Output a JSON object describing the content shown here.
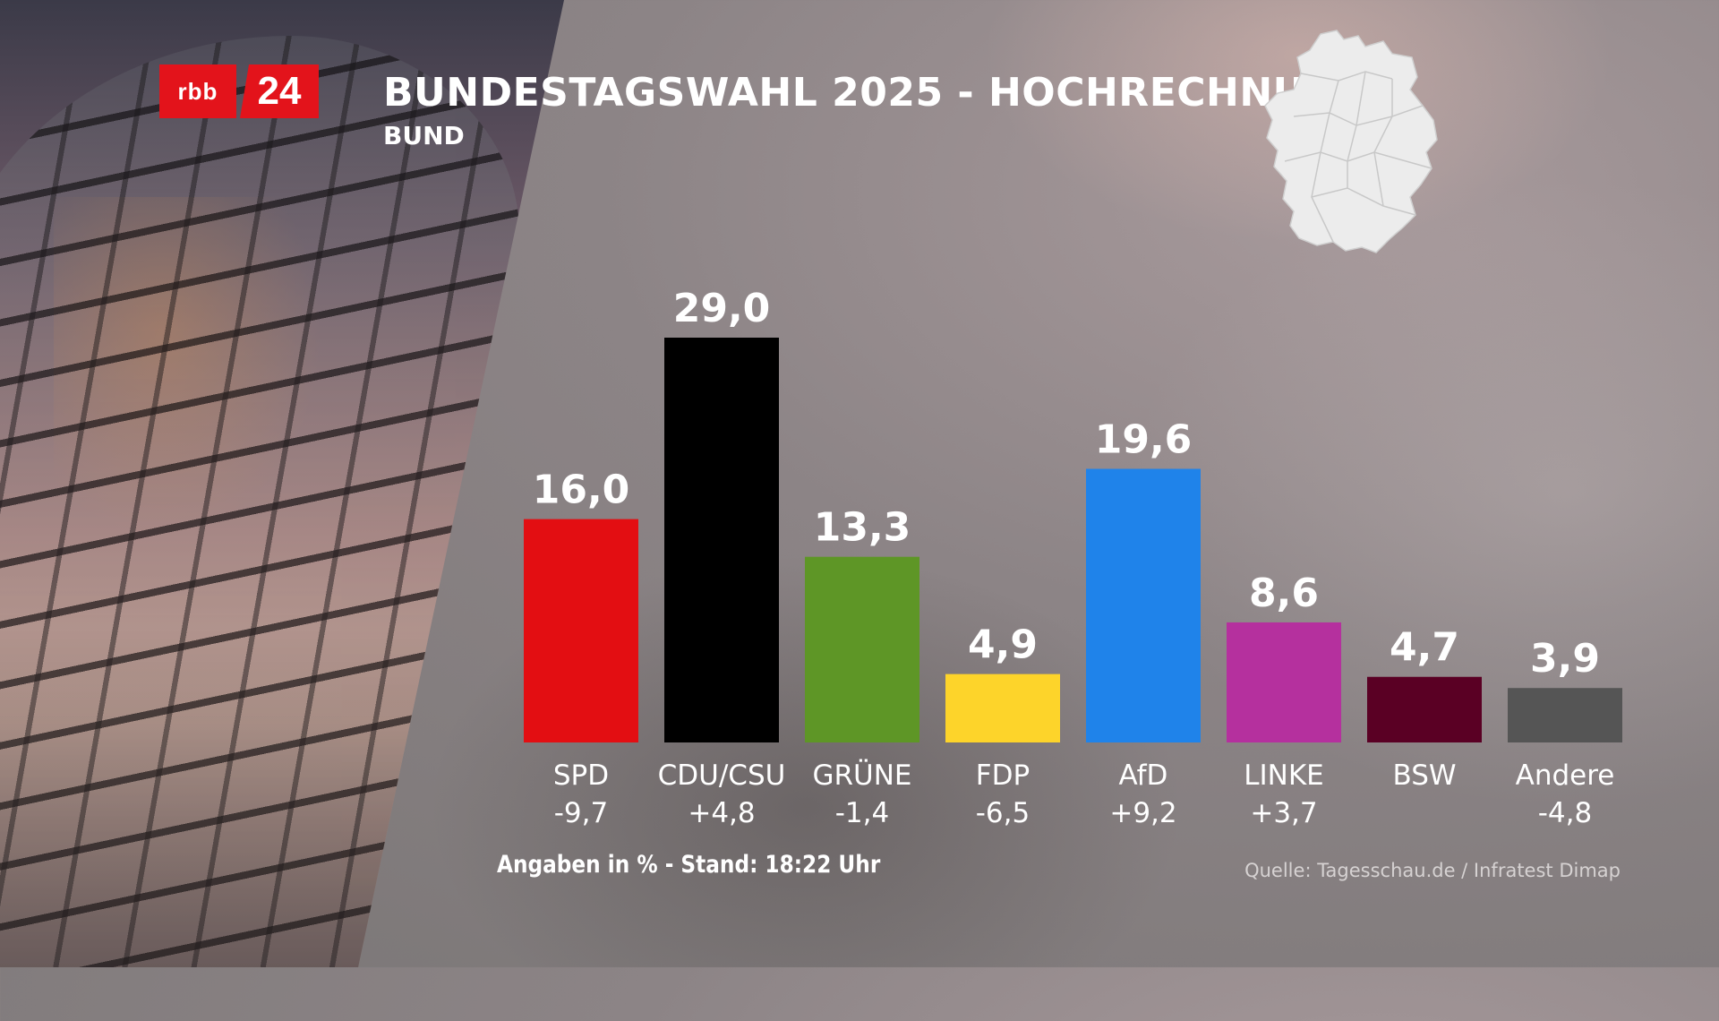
{
  "header": {
    "logo_rbb": "rbb",
    "logo_24": "24",
    "title": "BUNDESTAGSWAHL 2025 - HOCHRECHNUNG",
    "subtitle": "BUND"
  },
  "footer": {
    "note": "Angaben in % - Stand: 18:22 Uhr",
    "source": "Quelle: Tagesschau.de / Infratest Dimap"
  },
  "icons": [
    "germany-map-icon",
    "rbb24-logo"
  ],
  "chart_data": {
    "type": "bar",
    "title": "BUNDESTAGSWAHL 2025 - HOCHRECHNUNG",
    "subtitle": "BUND",
    "categories": [
      "SPD",
      "CDU/CSU",
      "GRÜNE",
      "FDP",
      "AfD",
      "LINKE",
      "BSW",
      "Andere"
    ],
    "values": [
      16.0,
      29.0,
      13.3,
      4.9,
      19.6,
      8.6,
      4.7,
      3.9
    ],
    "value_labels": [
      "16,0",
      "29,0",
      "13,3",
      "4,9",
      "19,6",
      "8,6",
      "4,7",
      "3,9"
    ],
    "changes": [
      "-9,7",
      "+4,8",
      "-1,4",
      "-6,5",
      "+9,2",
      "+3,7",
      "",
      "-4,8"
    ],
    "colors": [
      "#e30e12",
      "#000000",
      "#5e9626",
      "#fdd42a",
      "#1f83ea",
      "#b5309e",
      "#5a0024",
      "#555555"
    ],
    "ylim": [
      0,
      29.0
    ],
    "grid": false,
    "legend": "none",
    "unit": "%"
  }
}
